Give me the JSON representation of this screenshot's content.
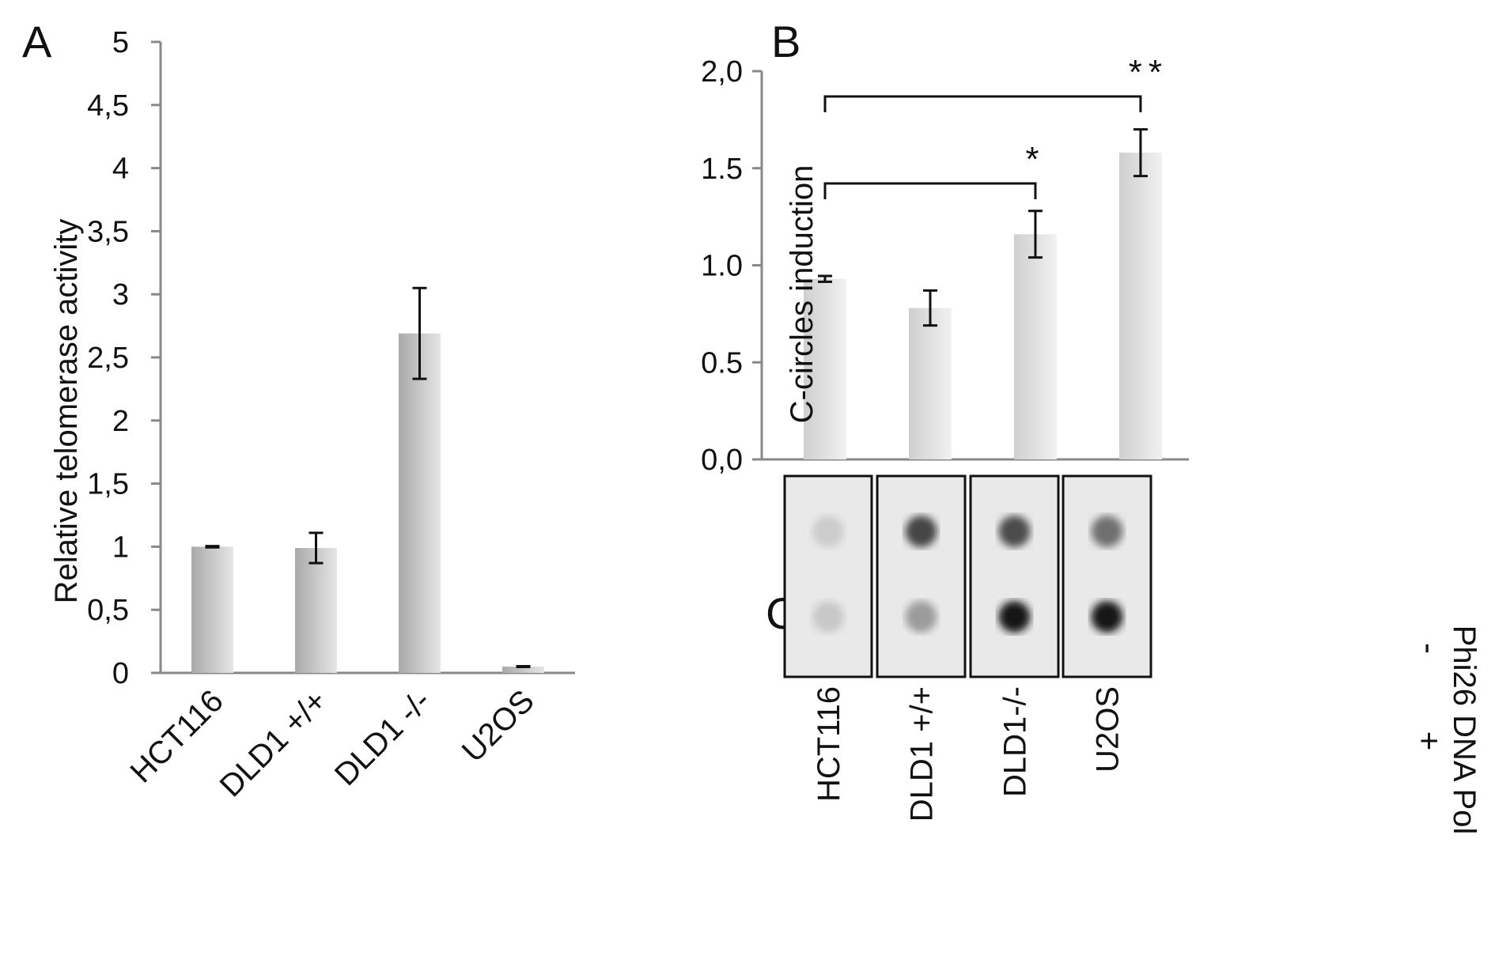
{
  "panel_labels": {
    "a": "A",
    "b": "B",
    "c": "C"
  },
  "chart_data": [
    {
      "type": "bar",
      "panel": "A",
      "ylabel": "Relative telomerase activity",
      "xlabel": "",
      "categories": [
        "HCT116",
        "DLD1 +/+",
        "DLD1 -/-",
        "U2OS"
      ],
      "values": [
        1.0,
        0.99,
        2.69,
        0.05
      ],
      "errors": [
        0.005,
        0.12,
        0.36,
        0.003
      ],
      "ylim": [
        0,
        5
      ],
      "ytick_values": [
        0,
        0.5,
        1,
        1.5,
        2,
        2.5,
        3,
        3.5,
        4,
        4.5,
        5
      ],
      "ytick_labels": [
        "0",
        "0,5",
        "1",
        "1,5",
        "2",
        "2,5",
        "3",
        "3,5",
        "4",
        "4,5",
        "5"
      ],
      "grid": false,
      "bar_color": "#c8c8c8"
    },
    {
      "type": "bar",
      "panel": "B",
      "ylabel": "C-circles induction",
      "xlabel": "",
      "categories": [
        "HCT116",
        "DLD1 +/+",
        "DLD1-/-",
        "U2OS"
      ],
      "values": [
        0.93,
        0.78,
        1.16,
        1.58
      ],
      "errors": [
        0.015,
        0.09,
        0.12,
        0.12
      ],
      "ylim": [
        0,
        2
      ],
      "ytick_values": [
        0,
        0.5,
        1,
        1.5,
        2
      ],
      "ytick_labels": [
        "0,0",
        "0.5",
        "1.0",
        "1.5",
        "2,0"
      ],
      "grid": false,
      "bar_color": "#e2e2e2",
      "significance": [
        {
          "from": 0,
          "to": 2,
          "label": "*"
        },
        {
          "from": 0,
          "to": 3,
          "label": "**"
        }
      ]
    }
  ],
  "dot_blot": {
    "lanes": [
      "HCT116",
      "DLD1 +/+",
      "DLD1-/-",
      "U2OS"
    ],
    "row_signs": [
      "-",
      "+"
    ],
    "side_label": "Phi26 DNA Pol",
    "intensity_minus": [
      0.12,
      0.75,
      0.72,
      0.55
    ],
    "intensity_plus": [
      0.14,
      0.35,
      0.97,
      0.97
    ]
  }
}
